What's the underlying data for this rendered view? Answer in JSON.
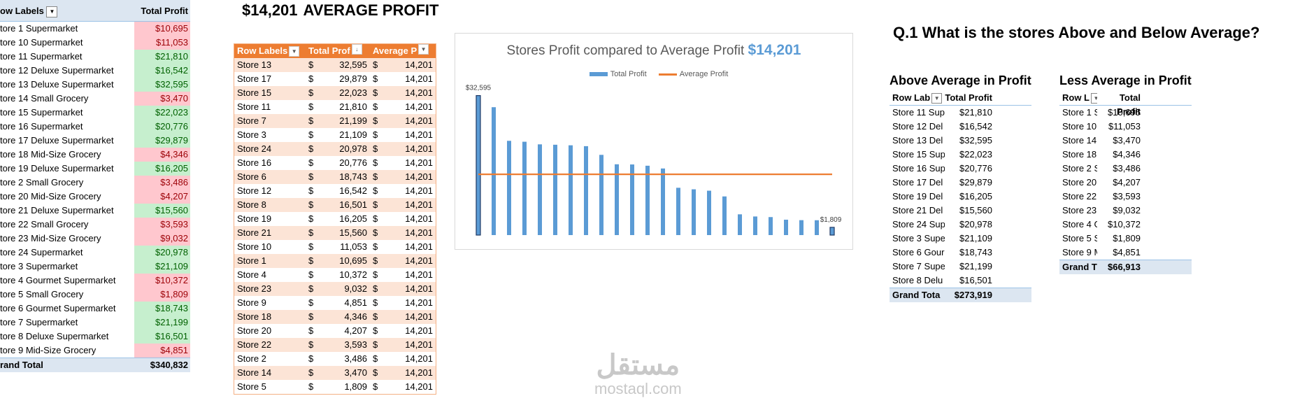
{
  "headline": {
    "value": "$14,201",
    "label": "AVERAGE PROFIT"
  },
  "pivot1": {
    "header": {
      "label": "ow Labels",
      "value": "Total Profit"
    },
    "rows": [
      {
        "label": "tore 1 Supermarket",
        "value": "$10,695",
        "status": "neg"
      },
      {
        "label": "tore 10 Supermarket",
        "value": "$11,053",
        "status": "neg"
      },
      {
        "label": "tore 11 Supermarket",
        "value": "$21,810",
        "status": "pos"
      },
      {
        "label": "tore 12 Deluxe Supermarket",
        "value": "$16,542",
        "status": "pos"
      },
      {
        "label": "tore 13 Deluxe Supermarket",
        "value": "$32,595",
        "status": "pos"
      },
      {
        "label": "tore 14 Small Grocery",
        "value": "$3,470",
        "status": "neg"
      },
      {
        "label": "tore 15 Supermarket",
        "value": "$22,023",
        "status": "pos"
      },
      {
        "label": "tore 16 Supermarket",
        "value": "$20,776",
        "status": "pos"
      },
      {
        "label": "tore 17 Deluxe Supermarket",
        "value": "$29,879",
        "status": "pos"
      },
      {
        "label": "tore 18 Mid-Size Grocery",
        "value": "$4,346",
        "status": "neg"
      },
      {
        "label": "tore 19 Deluxe Supermarket",
        "value": "$16,205",
        "status": "pos"
      },
      {
        "label": "tore 2 Small Grocery",
        "value": "$3,486",
        "status": "neg"
      },
      {
        "label": "tore 20 Mid-Size Grocery",
        "value": "$4,207",
        "status": "neg"
      },
      {
        "label": "tore 21 Deluxe Supermarket",
        "value": "$15,560",
        "status": "pos"
      },
      {
        "label": "tore 22 Small Grocery",
        "value": "$3,593",
        "status": "neg"
      },
      {
        "label": "tore 23 Mid-Size Grocery",
        "value": "$9,032",
        "status": "neg"
      },
      {
        "label": "tore 24 Supermarket",
        "value": "$20,978",
        "status": "pos"
      },
      {
        "label": "tore 3 Supermarket",
        "value": "$21,109",
        "status": "pos"
      },
      {
        "label": "tore 4 Gourmet Supermarket",
        "value": "$10,372",
        "status": "neg"
      },
      {
        "label": "tore 5 Small Grocery",
        "value": "$1,809",
        "status": "neg"
      },
      {
        "label": "tore 6 Gourmet Supermarket",
        "value": "$18,743",
        "status": "pos"
      },
      {
        "label": "tore 7 Supermarket",
        "value": "$21,199",
        "status": "pos"
      },
      {
        "label": "tore 8 Deluxe Supermarket",
        "value": "$16,501",
        "status": "pos"
      },
      {
        "label": "tore 9 Mid-Size Grocery",
        "value": "$4,851",
        "status": "neg"
      }
    ],
    "grand": {
      "label": "rand Total",
      "value": "$340,832"
    }
  },
  "table2": {
    "headers": [
      "Row Labels",
      "Total Prof",
      "Average P"
    ],
    "currency": "$",
    "rows": [
      {
        "store": "Store 13",
        "total": "32,595",
        "avg": "14,201"
      },
      {
        "store": "Store 17",
        "total": "29,879",
        "avg": "14,201"
      },
      {
        "store": "Store 15",
        "total": "22,023",
        "avg": "14,201"
      },
      {
        "store": "Store 11",
        "total": "21,810",
        "avg": "14,201"
      },
      {
        "store": "Store 7",
        "total": "21,199",
        "avg": "14,201"
      },
      {
        "store": "Store 3",
        "total": "21,109",
        "avg": "14,201"
      },
      {
        "store": "Store 24",
        "total": "20,978",
        "avg": "14,201"
      },
      {
        "store": "Store 16",
        "total": "20,776",
        "avg": "14,201"
      },
      {
        "store": "Store 6",
        "total": "18,743",
        "avg": "14,201"
      },
      {
        "store": "Store 12",
        "total": "16,542",
        "avg": "14,201"
      },
      {
        "store": "Store 8",
        "total": "16,501",
        "avg": "14,201"
      },
      {
        "store": "Store 19",
        "total": "16,205",
        "avg": "14,201"
      },
      {
        "store": "Store 21",
        "total": "15,560",
        "avg": "14,201"
      },
      {
        "store": "Store 10",
        "total": "11,053",
        "avg": "14,201"
      },
      {
        "store": "Store 1",
        "total": "10,695",
        "avg": "14,201"
      },
      {
        "store": "Store 4",
        "total": "10,372",
        "avg": "14,201"
      },
      {
        "store": "Store 23",
        "total": "9,032",
        "avg": "14,201"
      },
      {
        "store": "Store 9",
        "total": "4,851",
        "avg": "14,201"
      },
      {
        "store": "Store 18",
        "total": "4,346",
        "avg": "14,201"
      },
      {
        "store": "Store 20",
        "total": "4,207",
        "avg": "14,201"
      },
      {
        "store": "Store 22",
        "total": "3,593",
        "avg": "14,201"
      },
      {
        "store": "Store 2",
        "total": "3,486",
        "avg": "14,201"
      },
      {
        "store": "Store 14",
        "total": "3,470",
        "avg": "14,201"
      },
      {
        "store": "Store 5",
        "total": "1,809",
        "avg": "14,201"
      }
    ]
  },
  "chart": {
    "title": "Stores Profit compared to Average Profit",
    "title_value": "$14,201"
  },
  "chart_data": {
    "type": "bar",
    "categories": [
      "Store 13",
      "Store 17",
      "Store 15",
      "Store 11",
      "Store 7",
      "Store 3",
      "Store 24",
      "Store 16",
      "Store 6",
      "Store 12",
      "Store 8",
      "Store 19",
      "Store 21",
      "Store 10",
      "Store 1",
      "Store 4",
      "Store 23",
      "Store 9",
      "Store 18",
      "Store 20",
      "Store 22",
      "Store 2",
      "Store 14",
      "Store 5"
    ],
    "series": [
      {
        "name": "Total Profit",
        "type": "bar",
        "color": "#5b9bd5",
        "values": [
          32595,
          29879,
          22023,
          21810,
          21199,
          21109,
          20978,
          20776,
          18743,
          16542,
          16501,
          16205,
          15560,
          11053,
          10695,
          10372,
          9032,
          4851,
          4346,
          4207,
          3593,
          3486,
          3470,
          1809
        ]
      },
      {
        "name": "Average Profit",
        "type": "line",
        "color": "#ed7d31",
        "values": [
          14201,
          14201,
          14201,
          14201,
          14201,
          14201,
          14201,
          14201,
          14201,
          14201,
          14201,
          14201,
          14201,
          14201,
          14201,
          14201,
          14201,
          14201,
          14201,
          14201,
          14201,
          14201,
          14201,
          14201
        ]
      }
    ],
    "data_labels": [
      "$32,595",
      "$1,809"
    ],
    "ylim": [
      0,
      34000
    ],
    "legend": "top-center",
    "grid": false
  },
  "question": "Q.1 What is the stores Above and Below Average?",
  "above": {
    "title": "Above Average in Profit",
    "headers": [
      "Row Lab",
      "Total Profit"
    ],
    "rows": [
      {
        "label": "Store 11 Sup",
        "value": "$21,810"
      },
      {
        "label": "Store 12 Del",
        "value": "$16,542"
      },
      {
        "label": "Store 13 Del",
        "value": "$32,595"
      },
      {
        "label": "Store 15 Sup",
        "value": "$22,023"
      },
      {
        "label": "Store 16 Sup",
        "value": "$20,776"
      },
      {
        "label": "Store 17 Del",
        "value": "$29,879"
      },
      {
        "label": "Store 19 Del",
        "value": "$16,205"
      },
      {
        "label": "Store 21 Del",
        "value": "$15,560"
      },
      {
        "label": "Store 24 Sup",
        "value": "$20,978"
      },
      {
        "label": "Store 3 Supe",
        "value": "$21,109"
      },
      {
        "label": "Store 6 Gour",
        "value": "$18,743"
      },
      {
        "label": "Store 7 Supe",
        "value": "$21,199"
      },
      {
        "label": "Store 8 Delu",
        "value": "$16,501"
      }
    ],
    "grand": {
      "label": "Grand Tota",
      "value": "$273,919"
    }
  },
  "less": {
    "title": "Less Average in Profit",
    "headers": [
      "Row L",
      "Total Profit"
    ],
    "rows": [
      {
        "label": "Store 1 S",
        "value": "$10,695"
      },
      {
        "label": "Store 10",
        "value": "$11,053"
      },
      {
        "label": "Store 14",
        "value": "$3,470"
      },
      {
        "label": "Store 18",
        "value": "$4,346"
      },
      {
        "label": "Store 2 S",
        "value": "$3,486"
      },
      {
        "label": "Store 20",
        "value": "$4,207"
      },
      {
        "label": "Store 22",
        "value": "$3,593"
      },
      {
        "label": "Store 23",
        "value": "$9,032"
      },
      {
        "label": "Store 4 G",
        "value": "$10,372"
      },
      {
        "label": "Store 5 S",
        "value": "$1,809"
      },
      {
        "label": "Store 9 M",
        "value": "$4,851"
      }
    ],
    "grand": {
      "label": "Grand T",
      "value": "$66,913"
    }
  },
  "watermark": {
    "ar": "مستقل",
    "en": "mostaql.com"
  }
}
